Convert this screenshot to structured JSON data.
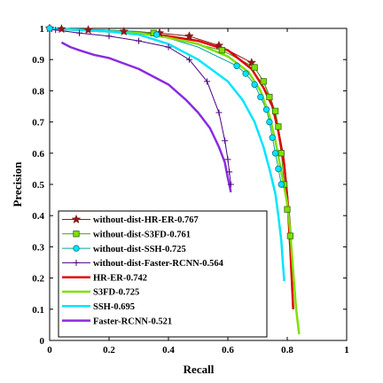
{
  "chart_data": {
    "type": "line",
    "title": "",
    "xlabel": "Recall",
    "ylabel": "Precision",
    "xlim": [
      0,
      1
    ],
    "ylim": [
      0,
      1
    ],
    "xticks": [
      0,
      0.2,
      0.4,
      0.6,
      0.8,
      1
    ],
    "xtick_labels": [
      "0",
      "0.2",
      "0.4",
      "0.6",
      "0.8",
      "1"
    ],
    "yticks": [
      0,
      0.1,
      0.2,
      0.3,
      0.4,
      0.5,
      0.6,
      0.7,
      0.8,
      0.9,
      1
    ],
    "ytick_labels": [
      "0",
      "0.1",
      "0.2",
      "0.3",
      "0.4",
      "0.5",
      "0.6",
      "0.7",
      "0.8",
      "0.9",
      "1"
    ],
    "grid": false,
    "legend_position": "bottom-left",
    "series": [
      {
        "name": "without-dist-HR-ER-0.767",
        "color": "#8b1a1a",
        "line_width": 1,
        "marker": "star",
        "marker_x": [
          0.0,
          0.04,
          0.13,
          0.25,
          0.37,
          0.47,
          0.57,
          0.68
        ],
        "x": [
          0.0,
          0.04,
          0.13,
          0.25,
          0.37,
          0.47,
          0.57,
          0.68,
          0.72,
          0.75,
          0.77,
          0.79,
          0.8,
          0.81,
          0.815
        ],
        "y": [
          1.0,
          0.998,
          0.995,
          0.99,
          0.985,
          0.975,
          0.945,
          0.89,
          0.83,
          0.76,
          0.68,
          0.58,
          0.48,
          0.38,
          0.32
        ]
      },
      {
        "name": "without-dist-S3FD-0.761",
        "color": "#4c9a1a",
        "line_width": 1,
        "marker": "square",
        "marker_x": [
          0.35,
          0.58,
          0.69,
          0.72,
          0.74,
          0.76,
          0.77,
          0.78,
          0.79,
          0.8,
          0.81
        ],
        "x": [
          0.0,
          0.1,
          0.2,
          0.3,
          0.35,
          0.45,
          0.58,
          0.69,
          0.72,
          0.74,
          0.76,
          0.77,
          0.78,
          0.79,
          0.8,
          0.81
        ],
        "y": [
          1.0,
          0.998,
          0.994,
          0.99,
          0.985,
          0.96,
          0.93,
          0.875,
          0.83,
          0.78,
          0.735,
          0.685,
          0.6,
          0.5,
          0.42,
          0.335
        ]
      },
      {
        "name": "without-dist-SSH-0.725",
        "color": "#0aa3a3",
        "line_width": 1,
        "marker": "circle",
        "marker_x": [
          0.0,
          0.36,
          0.63,
          0.66,
          0.69,
          0.71,
          0.73,
          0.74,
          0.75,
          0.76,
          0.77,
          0.78
        ],
        "x": [
          0.0,
          0.1,
          0.2,
          0.3,
          0.36,
          0.5,
          0.63,
          0.66,
          0.69,
          0.71,
          0.73,
          0.74,
          0.75,
          0.76,
          0.77,
          0.78
        ],
        "y": [
          1.0,
          0.998,
          0.994,
          0.99,
          0.98,
          0.94,
          0.88,
          0.855,
          0.82,
          0.78,
          0.74,
          0.7,
          0.65,
          0.6,
          0.55,
          0.5
        ]
      },
      {
        "name": "without-dist-Faster-RCNN-0.564",
        "color": "#4b0082",
        "line_width": 1,
        "marker": "plus",
        "marker_x": [
          0.02,
          0.1,
          0.2,
          0.3,
          0.4,
          0.47,
          0.53,
          0.57,
          0.59,
          0.6,
          0.605,
          0.61
        ],
        "x": [
          0.0,
          0.02,
          0.1,
          0.2,
          0.3,
          0.4,
          0.47,
          0.53,
          0.57,
          0.59,
          0.6,
          0.605,
          0.61
        ],
        "y": [
          1.0,
          0.995,
          0.985,
          0.975,
          0.96,
          0.94,
          0.9,
          0.83,
          0.73,
          0.64,
          0.58,
          0.54,
          0.5
        ]
      },
      {
        "name": "HR-ER-0.742",
        "color": "#e00000",
        "line_width": 2.5,
        "marker": "none",
        "x": [
          0.0,
          0.1,
          0.2,
          0.3,
          0.4,
          0.5,
          0.6,
          0.68,
          0.72,
          0.75,
          0.77,
          0.79,
          0.8,
          0.81,
          0.82
        ],
        "y": [
          1.0,
          0.995,
          0.99,
          0.985,
          0.975,
          0.96,
          0.93,
          0.87,
          0.81,
          0.75,
          0.67,
          0.56,
          0.46,
          0.3,
          0.1
        ]
      },
      {
        "name": "S3FD-0.725",
        "color": "#7fe000",
        "line_width": 2.5,
        "marker": "none",
        "x": [
          0.0,
          0.1,
          0.2,
          0.3,
          0.4,
          0.5,
          0.6,
          0.67,
          0.71,
          0.74,
          0.76,
          0.78,
          0.8,
          0.81,
          0.82,
          0.83,
          0.84
        ],
        "y": [
          1.0,
          0.995,
          0.99,
          0.985,
          0.97,
          0.95,
          0.91,
          0.86,
          0.8,
          0.72,
          0.64,
          0.54,
          0.44,
          0.35,
          0.22,
          0.1,
          0.02
        ]
      },
      {
        "name": "SSH-0.695",
        "color": "#00e5ff",
        "line_width": 2.5,
        "marker": "none",
        "x": [
          0.0,
          0.1,
          0.2,
          0.3,
          0.4,
          0.5,
          0.6,
          0.65,
          0.69,
          0.72,
          0.74,
          0.76,
          0.77,
          0.78,
          0.785,
          0.79
        ],
        "y": [
          1.0,
          0.995,
          0.99,
          0.98,
          0.95,
          0.9,
          0.83,
          0.77,
          0.7,
          0.62,
          0.55,
          0.47,
          0.4,
          0.32,
          0.25,
          0.19
        ]
      },
      {
        "name": "Faster-RCNN-0.521",
        "color": "#8a2be2",
        "line_width": 2.5,
        "marker": "none",
        "x": [
          0.04,
          0.07,
          0.1,
          0.15,
          0.2,
          0.3,
          0.4,
          0.46,
          0.5,
          0.54,
          0.57,
          0.59,
          0.6,
          0.605,
          0.61
        ],
        "y": [
          0.955,
          0.94,
          0.93,
          0.915,
          0.905,
          0.87,
          0.82,
          0.77,
          0.73,
          0.68,
          0.62,
          0.57,
          0.52,
          0.5,
          0.475
        ]
      }
    ]
  }
}
